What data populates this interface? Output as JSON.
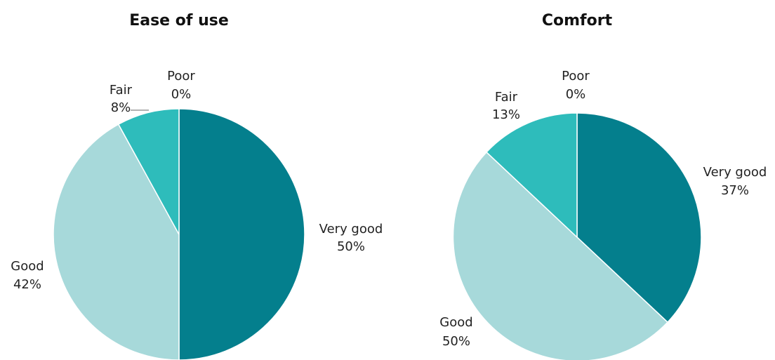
{
  "chart_data": [
    {
      "type": "pie",
      "title": "Ease of use",
      "slices": [
        {
          "label": "Very good",
          "value_label": "50%",
          "value": 50,
          "color": "#047f8d"
        },
        {
          "label": "Good",
          "value_label": "42%",
          "value": 42,
          "color": "#a7d9da"
        },
        {
          "label": "Fair",
          "value_label": "8%",
          "value": 8,
          "color": "#2ebcbb"
        },
        {
          "label": "Poor",
          "value_label": "0%",
          "value": 0,
          "color": "#0a5f6b"
        }
      ]
    },
    {
      "type": "pie",
      "title": "Comfort",
      "slices": [
        {
          "label": "Very good",
          "value_label": "37%",
          "value": 37,
          "color": "#047f8d"
        },
        {
          "label": "Good",
          "value_label": "50%",
          "value": 50,
          "color": "#a7d9da"
        },
        {
          "label": "Fair",
          "value_label": "13%",
          "value": 13,
          "color": "#2ebcbb"
        },
        {
          "label": "Poor",
          "value_label": "0%",
          "value": 0,
          "color": "#0a5f6b"
        }
      ]
    }
  ]
}
